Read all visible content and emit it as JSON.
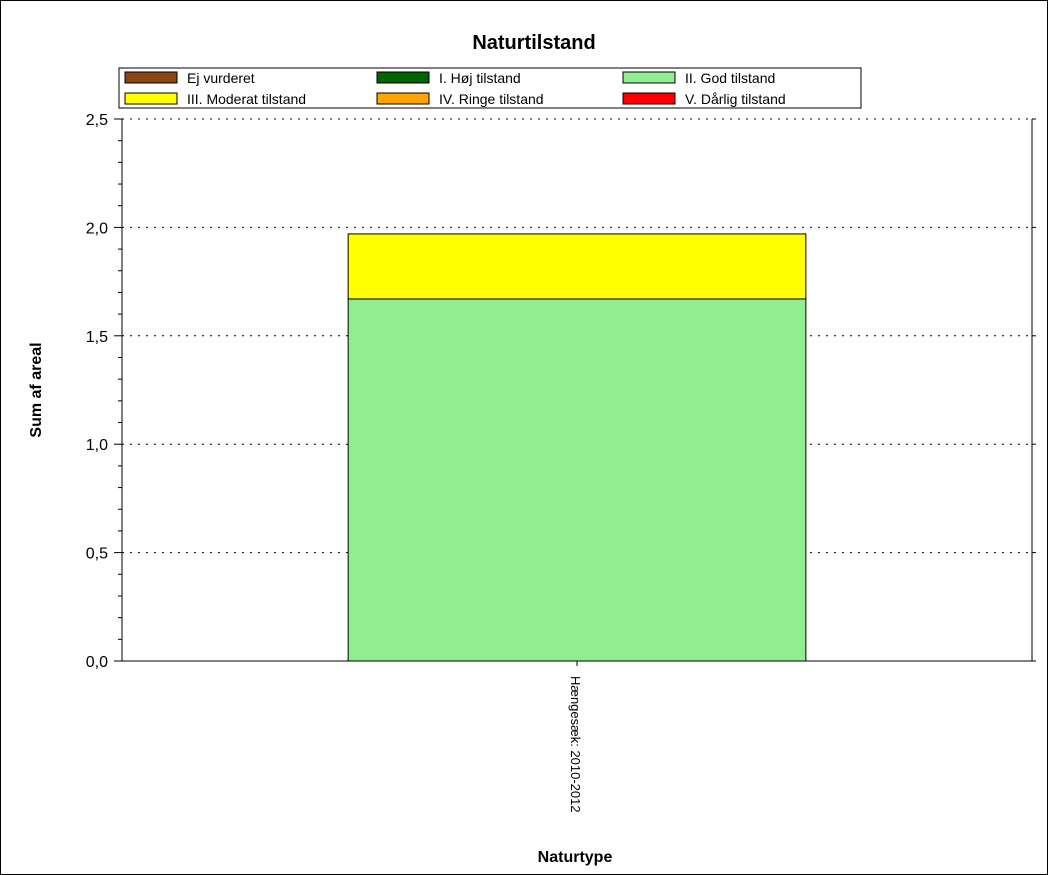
{
  "chart_data": {
    "type": "bar",
    "stacked": true,
    "title": "Naturtilstand",
    "xlabel": "Naturtype",
    "ylabel": "Sum af areal",
    "ylim": [
      0,
      2.5
    ],
    "yticks": [
      "0,0",
      "0,5",
      "1,0",
      "1,5",
      "2,0",
      "2,5"
    ],
    "grid": true,
    "legend_position": "top",
    "categories": [
      "Hængesæk: 2010-2012"
    ],
    "series": [
      {
        "name": "Ej vurderet",
        "color": "#8B4513",
        "values": [
          0
        ]
      },
      {
        "name": "I. Høj tilstand",
        "color": "#006400",
        "values": [
          0
        ]
      },
      {
        "name": "II. God tilstand",
        "color": "#90EE90",
        "values": [
          1.67
        ]
      },
      {
        "name": "III. Moderat tilstand",
        "color": "#FFFF00",
        "values": [
          0.3
        ]
      },
      {
        "name": "IV. Ringe tilstand",
        "color": "#FFA500",
        "values": [
          0
        ]
      },
      {
        "name": "V. Dårlig tilstand",
        "color": "#FF0000",
        "values": [
          0
        ]
      }
    ]
  }
}
